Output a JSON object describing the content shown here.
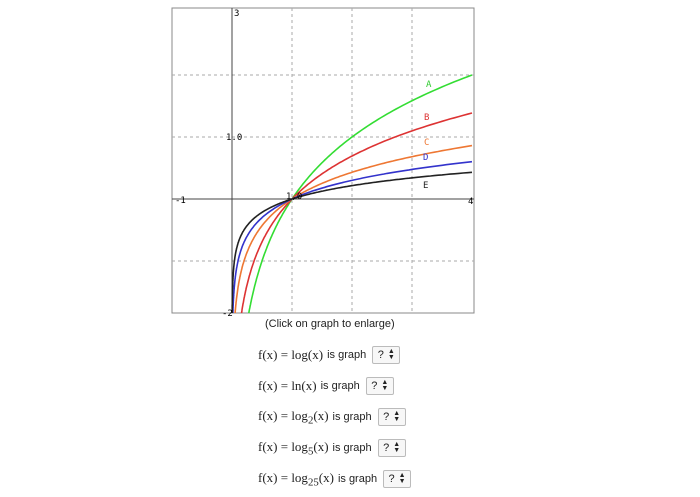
{
  "graph": {
    "axis_labels": {
      "ymax": "3",
      "ymid": "1.0",
      "xmin": "-1",
      "xmax": "4",
      "point": "1,0",
      "ymin": "-2"
    },
    "curve_labels": [
      "A",
      "B",
      "C",
      "D",
      "E"
    ]
  },
  "caption": "(Click on graph to enlarge)",
  "questions": [
    {
      "pre": "f(x) = log(x)",
      "tail": "is graph",
      "select": "?"
    },
    {
      "pre": "f(x) = ln(x)",
      "tail": "is graph",
      "select": "?"
    },
    {
      "pre": "f(x) = log",
      "sub": "2",
      "post": "(x)",
      "tail": "is graph",
      "select": "?"
    },
    {
      "pre": "f(x) = log",
      "sub": "5",
      "post": "(x)",
      "tail": "is graph",
      "select": "?"
    },
    {
      "pre": "f(x) = log",
      "sub": "25",
      "post": "(x)",
      "tail": "is graph",
      "select": "?"
    }
  ]
}
